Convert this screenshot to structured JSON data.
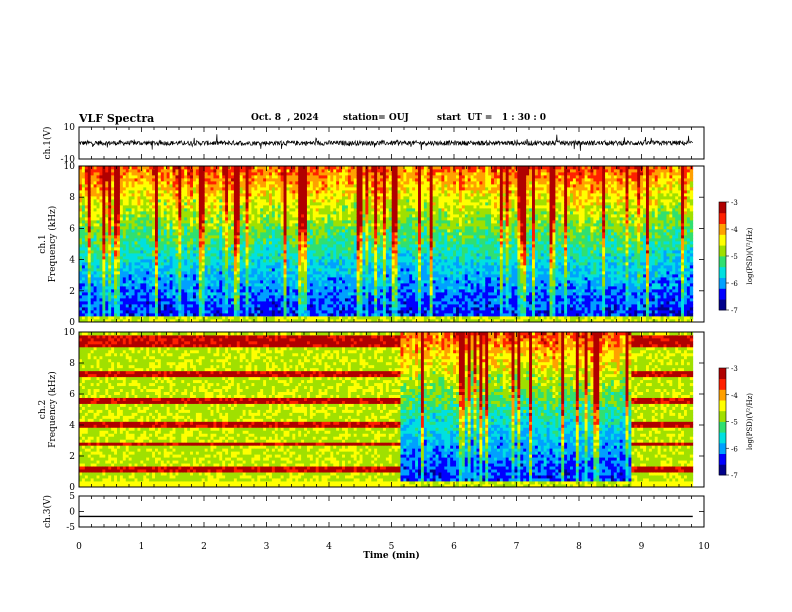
{
  "header": {
    "title": "VLF Spectra",
    "date": "Oct. 8  , 2024",
    "station": "station= OUJ",
    "start_ut": "start  UT =   1 : 30 : 0"
  },
  "colors": {
    "colormap": [
      "#00008b",
      "#0000ff",
      "#00a0ff",
      "#00e0e0",
      "#30e070",
      "#a0e000",
      "#ffff00",
      "#ffa000",
      "#ff2000",
      "#b00000"
    ],
    "trace": "#000000"
  },
  "chart_data": [
    {
      "type": "line",
      "name": "ch1-waveform",
      "ylabel": "ch.1(V)",
      "ylim": [
        -10,
        10
      ],
      "yticks": [
        "10",
        "-10"
      ],
      "xlim": [
        0,
        10
      ],
      "baseline": 0,
      "noise_amplitude": 1.5
    },
    {
      "type": "heatmap",
      "name": "ch1-spectrogram",
      "ylabel": "ch.1\nFrequency  (kHz)",
      "ylim": [
        0,
        10
      ],
      "yticks": [
        "0",
        "2",
        "4",
        "6",
        "8",
        "10"
      ],
      "xlim": [
        0,
        10
      ],
      "data_end_min": 9.82,
      "colorbar": {
        "label": "log(PSD)(V²/Hz)",
        "ticks": [
          "-3",
          "-4",
          "-5",
          "-6",
          "-7"
        ],
        "range": [
          -7,
          -3
        ]
      }
    },
    {
      "type": "heatmap",
      "name": "ch2-spectrogram",
      "ylabel": "ch.2\nFrequency  (kHz)",
      "ylim": [
        0,
        10
      ],
      "yticks": [
        "0",
        "2",
        "4",
        "6",
        "8",
        "10"
      ],
      "xlim": [
        0,
        10
      ],
      "data_end_min": 9.82,
      "interference_off_interval_min": [
        5.15,
        8.85
      ],
      "interference_lines_khz": [
        1.2,
        2.8,
        4.0,
        5.6,
        7.3,
        9.2,
        9.6
      ],
      "colorbar": {
        "label": "log(PSD)(V²/Hz)",
        "ticks": [
          "-3",
          "-4",
          "-5",
          "-6",
          "-7"
        ],
        "range": [
          -7,
          -3
        ]
      }
    },
    {
      "type": "line",
      "name": "ch3-waveform",
      "ylabel": "ch.3(V)",
      "ylim": [
        -5,
        5
      ],
      "yticks": [
        "5",
        "0",
        "-5"
      ],
      "xlim": [
        0,
        10
      ],
      "constant_value": -1.6,
      "xlabel": "Time  (min)",
      "xticks": [
        "0",
        "1",
        "2",
        "3",
        "4",
        "5",
        "6",
        "7",
        "8",
        "9",
        "10"
      ]
    }
  ]
}
